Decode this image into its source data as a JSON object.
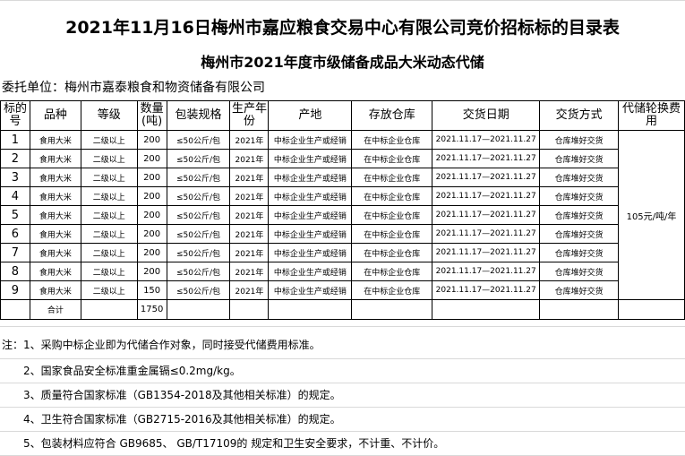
{
  "title": "2021年11月16日梅州市嘉应粮食交易中心有限公司竞价招标标的目录表",
  "subtitle": "梅州市2021年度市级储备成品大米动态代储",
  "client": "委托单位：梅州市嘉泰粮食和物资储备有限公司",
  "headers": [
    "标的号",
    "品种",
    "等级",
    "数量(吨)",
    "包装规格",
    "生产年份",
    "产地",
    "存放仓库",
    "交货日期",
    "交货方式",
    "代储轮换费用"
  ],
  "rows": [
    {
      "no": "1",
      "variety": "食用大米",
      "grade": "二级以上",
      "qty": "200",
      "pack": "≤50公斤/包",
      "year": "2021年",
      "origin": "中标企业生产或经销",
      "warehouse": "在中标企业仓库",
      "date": "2021.11.17—2021.11.27",
      "method": "仓库堆好交货"
    },
    {
      "no": "2",
      "variety": "食用大米",
      "grade": "二级以上",
      "qty": "200",
      "pack": "≤50公斤/包",
      "year": "2021年",
      "origin": "中标企业生产或经销",
      "warehouse": "在中标企业仓库",
      "date": "2021.11.17—2021.11.27",
      "method": "仓库堆好交货"
    },
    {
      "no": "3",
      "variety": "食用大米",
      "grade": "二级以上",
      "qty": "200",
      "pack": "≤50公斤/包",
      "year": "2021年",
      "origin": "中标企业生产或经销",
      "warehouse": "在中标企业仓库",
      "date": "2021.11.17—2021.11.27",
      "method": "仓库堆好交货"
    },
    {
      "no": "4",
      "variety": "食用大米",
      "grade": "二级以上",
      "qty": "200",
      "pack": "≤50公斤/包",
      "year": "2021年",
      "origin": "中标企业生产或经销",
      "warehouse": "在中标企业仓库",
      "date": "2021.11.17—2021.11.27",
      "method": "仓库堆好交货"
    },
    {
      "no": "5",
      "variety": "食用大米",
      "grade": "二级以上",
      "qty": "200",
      "pack": "≤50公斤/包",
      "year": "2021年",
      "origin": "中标企业生产或经销",
      "warehouse": "在中标企业仓库",
      "date": "2021.11.17—2021.11.27",
      "method": "仓库堆好交货"
    },
    {
      "no": "6",
      "variety": "食用大米",
      "grade": "二级以上",
      "qty": "200",
      "pack": "≤50公斤/包",
      "year": "2021年",
      "origin": "中标企业生产或经销",
      "warehouse": "在中标企业仓库",
      "date": "2021.11.17—2021.11.27",
      "method": "仓库堆好交货"
    },
    {
      "no": "7",
      "variety": "食用大米",
      "grade": "二级以上",
      "qty": "200",
      "pack": "≤50公斤/包",
      "year": "2021年",
      "origin": "中标企业生产或经销",
      "warehouse": "在中标企业仓库",
      "date": "2021.11.17—2021.11.27",
      "method": "仓库堆好交货"
    },
    {
      "no": "8",
      "variety": "食用大米",
      "grade": "二级以上",
      "qty": "200",
      "pack": "≤50公斤/包",
      "year": "2021年",
      "origin": "中标企业生产或经销",
      "warehouse": "在中标企业仓库",
      "date": "2021.11.17—2021.11.27",
      "method": "仓库堆好交货"
    },
    {
      "no": "9",
      "variety": "食用大米",
      "grade": "二级以上",
      "qty": "150",
      "pack": "≤50公斤/包",
      "year": "2021年",
      "origin": "中标企业生产或经销",
      "warehouse": "在中标企业仓库",
      "date": "2021.11.17—2021.11.27",
      "method": "仓库堆好交货"
    }
  ],
  "fee": "105元/吨/年",
  "total_label": "合计",
  "total_qty": "1750",
  "notes": [
    "注：1、采购中标企业即为代储合作对象，同时接受代储费用标准。",
    "2、国家食品安全标准重金属镉≤0.2mg/kg。",
    "3、质量符合国家标准（GB1354-2018及其他相关标准）的规定。",
    "4、卫生符合国家标准（GB2715-2016及其他相关标准）的规定。",
    "5、包装材料应符合 GB9685、 GB/T17109的 规定和卫生安全要求，不计重、不计价。"
  ]
}
